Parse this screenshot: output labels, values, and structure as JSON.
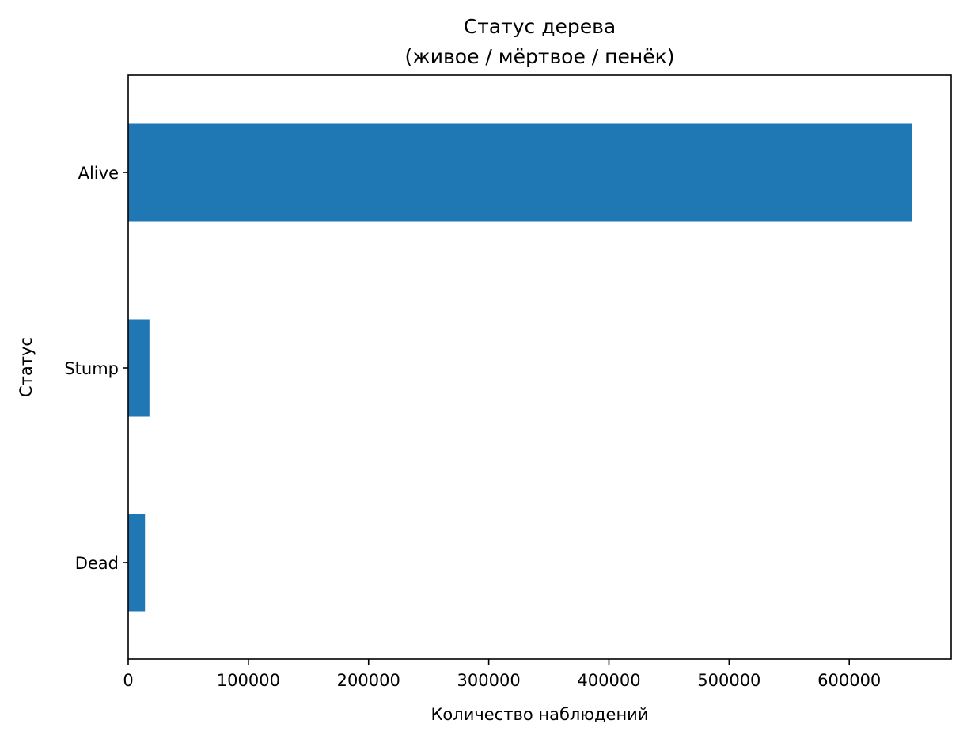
{
  "chart_data": {
    "type": "bar",
    "orientation": "horizontal",
    "title": "Статус дерева",
    "subtitle": "(живое / мёртвое / пенёк)",
    "xlabel": "Количество наблюдений",
    "ylabel": "Статус",
    "categories": [
      "Alive",
      "Stump",
      "Dead"
    ],
    "values": [
      652173,
      17654,
      13961
    ],
    "xlim": [
      0,
      684800
    ],
    "xticks": [
      0,
      100000,
      200000,
      300000,
      400000,
      500000,
      600000
    ],
    "xtick_labels": [
      "0",
      "100000",
      "200000",
      "300000",
      "400000",
      "500000",
      "600000"
    ],
    "grid": false,
    "legend": "none",
    "bar_color": "#1f77b4"
  }
}
